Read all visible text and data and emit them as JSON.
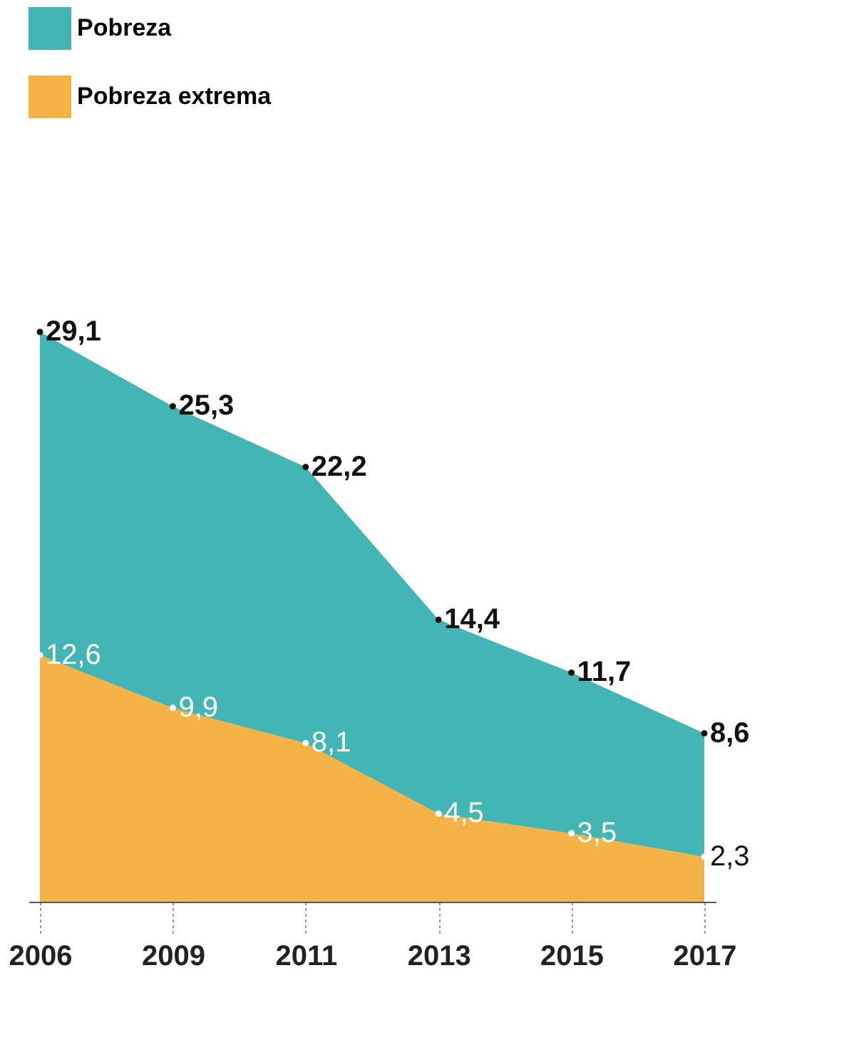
{
  "chart_data": {
    "type": "area",
    "categories": [
      "2006",
      "2009",
      "2011",
      "2013",
      "2015",
      "2017"
    ],
    "series": [
      {
        "name": "Pobreza",
        "color": "#43b5b5",
        "values": [
          29.1,
          25.3,
          22.2,
          14.4,
          11.7,
          8.6
        ],
        "value_labels": [
          "29,1",
          "25,3",
          "22,2",
          "14,4",
          "11,7",
          "8,6"
        ]
      },
      {
        "name": "Pobreza extrema",
        "color": "#f5b247",
        "values": [
          12.6,
          9.9,
          8.1,
          4.5,
          3.5,
          2.3
        ],
        "value_labels": [
          "12,6",
          "9,9",
          "8,1",
          "4,5",
          "3,5",
          "2,3"
        ]
      }
    ],
    "marker": "circle",
    "legend": "top left",
    "grid": false
  }
}
